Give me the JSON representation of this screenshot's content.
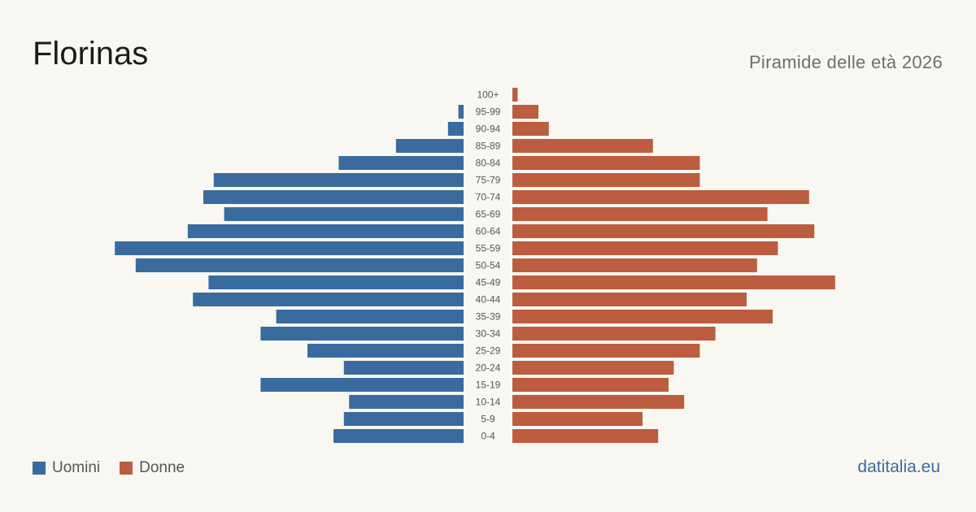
{
  "header": {
    "title": "Florinas",
    "subtitle": "Piramide delle età 2026"
  },
  "legend": {
    "men_label": "Uomini",
    "women_label": "Donne"
  },
  "source": "datitalia.eu",
  "colors": {
    "men": "#3a6b9f",
    "women": "#bb5d3e",
    "background": "#f9f7f2",
    "label": "#555555"
  },
  "chart_data": {
    "type": "bar",
    "orientation": "horizontal-diverging",
    "categories": [
      "100+",
      "95-99",
      "90-94",
      "85-89",
      "80-84",
      "75-79",
      "70-74",
      "65-69",
      "60-64",
      "55-59",
      "50-54",
      "45-49",
      "40-44",
      "35-39",
      "30-34",
      "25-29",
      "20-24",
      "15-19",
      "10-14",
      "5-9",
      "0-4"
    ],
    "series": [
      {
        "name": "Uomini",
        "values": [
          0,
          1,
          3,
          13,
          24,
          48,
          50,
          46,
          53,
          67,
          63,
          49,
          52,
          36,
          39,
          30,
          23,
          39,
          22,
          23,
          25
        ]
      },
      {
        "name": "Donne",
        "values": [
          1,
          5,
          7,
          27,
          36,
          36,
          57,
          49,
          58,
          51,
          47,
          62,
          45,
          50,
          39,
          36,
          31,
          30,
          33,
          25,
          28
        ]
      }
    ],
    "title": "Florinas",
    "subtitle": "Piramide delle età 2026",
    "legend_position": "bottom-left",
    "grid": false
  }
}
